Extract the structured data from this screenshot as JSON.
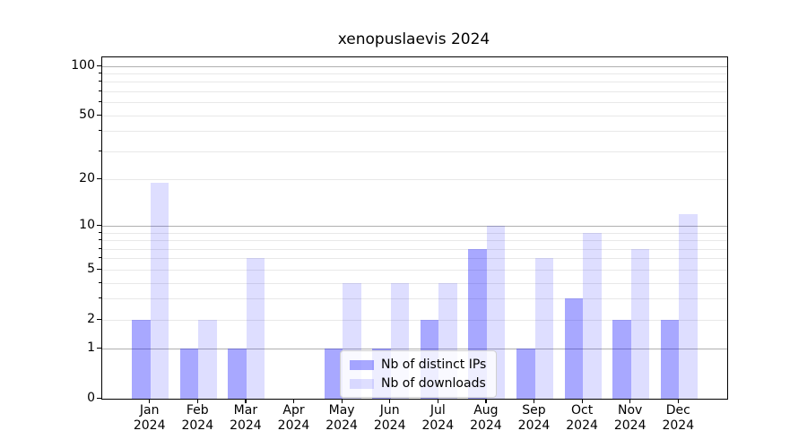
{
  "title": "xenopuslaevis 2024",
  "chart_data": {
    "type": "bar",
    "title": "xenopuslaevis 2024",
    "categories": [
      "Jan",
      "Feb",
      "Mar",
      "Apr",
      "May",
      "Jun",
      "Jul",
      "Aug",
      "Sep",
      "Oct",
      "Nov",
      "Dec"
    ],
    "category_year": "2024",
    "x_tick_labels": [
      "Jan 2024",
      "Feb 2024",
      "Mar 2024",
      "Apr 2024",
      "May 2024",
      "Jun 2024",
      "Jul 2024",
      "Aug 2024",
      "Sep 2024",
      "Oct 2024",
      "Nov 2024",
      "Dec 2024"
    ],
    "series": [
      {
        "name": "Nb of distinct IPs",
        "color": "rgba(0,0,255,0.34)",
        "values": [
          2,
          1,
          1,
          0,
          1,
          1,
          2,
          7,
          1,
          3,
          2,
          2
        ]
      },
      {
        "name": "Nb of downloads",
        "color": "rgba(0,0,255,0.13)",
        "values": [
          19,
          2,
          6,
          0,
          4,
          4,
          4,
          10,
          6,
          9,
          7,
          12
        ]
      }
    ],
    "xlabel": "",
    "ylabel": "",
    "yscale": "log1p",
    "ylim": [
      0,
      113
    ],
    "ytick_values": [
      0,
      1,
      2,
      5,
      10,
      20,
      50,
      100
    ],
    "ytick_labels": [
      "0",
      "1",
      "2",
      "5",
      "10",
      "20",
      "50",
      "100"
    ],
    "major_gridlines": [
      1,
      10,
      100
    ],
    "minor_gridlines": [
      2,
      3,
      4,
      5,
      6,
      7,
      8,
      9,
      20,
      30,
      40,
      50,
      60,
      70,
      80,
      90
    ],
    "grid": true,
    "legend_position": "lower center-inside",
    "legend_entries": [
      "Nb of distinct IPs",
      "Nb of downloads"
    ]
  },
  "colors": {
    "background": "#ffffff",
    "spine": "#000000",
    "major_grid": "#b0b0b0",
    "minor_grid": "#e8e8e8",
    "bar_distinct_ips": "rgba(0,0,255,0.34)",
    "bar_downloads": "rgba(0,0,255,0.13)",
    "legend_border": "#d0d0d0"
  }
}
